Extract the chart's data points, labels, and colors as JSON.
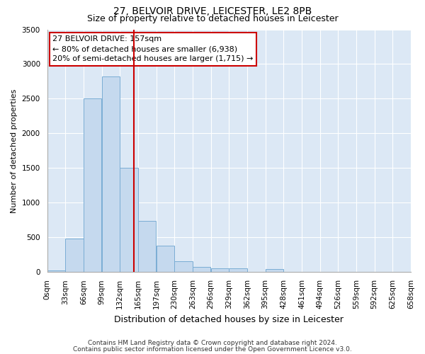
{
  "title": "27, BELVOIR DRIVE, LEICESTER, LE2 8PB",
  "subtitle": "Size of property relative to detached houses in Leicester",
  "xlabel": "Distribution of detached houses by size in Leicester",
  "ylabel": "Number of detached properties",
  "footnote1": "Contains HM Land Registry data © Crown copyright and database right 2024.",
  "footnote2": "Contains public sector information licensed under the Open Government Licence v3.0.",
  "annotation_line1": "27 BELVOIR DRIVE: 157sqm",
  "annotation_line2": "← 80% of detached houses are smaller (6,938)",
  "annotation_line3": "20% of semi-detached houses are larger (1,715) →",
  "bar_color": "#c5d9ee",
  "bar_edge_color": "#7aadd4",
  "vline_color": "#cc0000",
  "vline_x": 157,
  "bin_edges": [
    0,
    33,
    66,
    99,
    132,
    165,
    198,
    231,
    264,
    297,
    330,
    363,
    396,
    429,
    462,
    495,
    528,
    561,
    594,
    627,
    660
  ],
  "bar_heights": [
    20,
    480,
    2500,
    2820,
    1500,
    740,
    380,
    155,
    70,
    50,
    50,
    0,
    40,
    0,
    0,
    0,
    0,
    0,
    0,
    0
  ],
  "xlim": [
    0,
    660
  ],
  "ylim": [
    0,
    3500
  ],
  "yticks": [
    0,
    500,
    1000,
    1500,
    2000,
    2500,
    3000,
    3500
  ],
  "xtick_labels": [
    "0sqm",
    "33sqm",
    "66sqm",
    "99sqm",
    "132sqm",
    "165sqm",
    "197sqm",
    "230sqm",
    "263sqm",
    "296sqm",
    "329sqm",
    "362sqm",
    "395sqm",
    "428sqm",
    "461sqm",
    "494sqm",
    "526sqm",
    "559sqm",
    "592sqm",
    "625sqm",
    "658sqm"
  ],
  "background_color": "#dce8f5",
  "grid_color": "#ffffff",
  "fig_bg_color": "#ffffff",
  "title_fontsize": 10,
  "subtitle_fontsize": 9,
  "xlabel_fontsize": 9,
  "ylabel_fontsize": 8,
  "tick_fontsize": 7.5,
  "annotation_fontsize": 8,
  "footnote_fontsize": 6.5
}
